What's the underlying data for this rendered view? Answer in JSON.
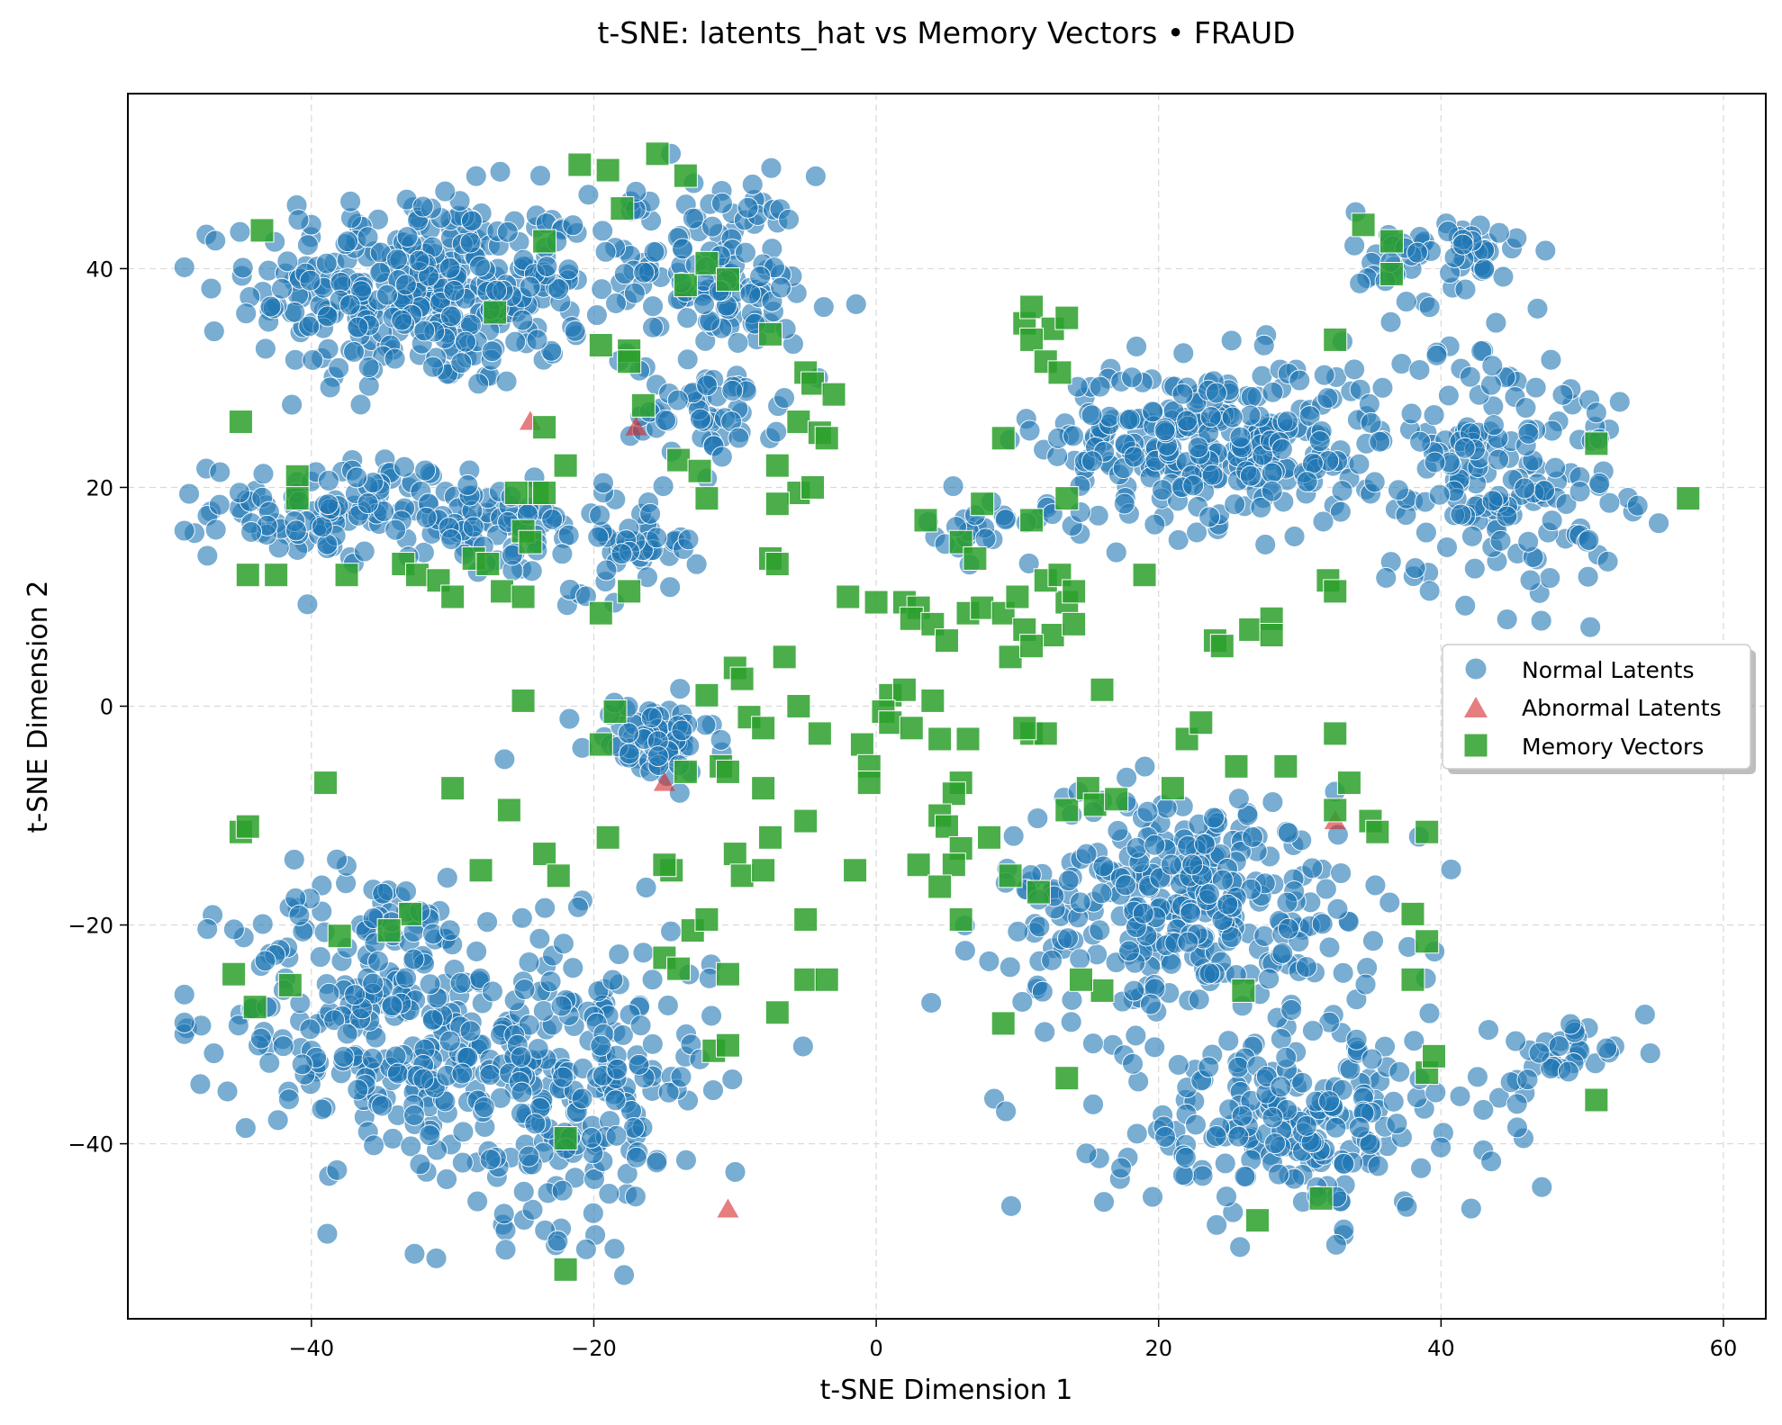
{
  "chart_data": {
    "type": "scatter",
    "title": "t-SNE: latents_hat vs Memory Vectors • FRAUD",
    "xlabel": "t-SNE Dimension 1",
    "ylabel": "t-SNE Dimension 2",
    "xlim": [
      -53,
      63
    ],
    "ylim": [
      -56,
      56
    ],
    "x_ticks": [
      -40,
      -20,
      0,
      20,
      40,
      60
    ],
    "y_ticks": [
      -40,
      -20,
      0,
      20,
      40
    ],
    "x_tick_labels": [
      "−40",
      "−20",
      "0",
      "20",
      "40",
      "60"
    ],
    "y_tick_labels": [
      "−40",
      "−20",
      "0",
      "20",
      "40"
    ],
    "grid": true,
    "legend_position": "center-right",
    "legend": [
      "Normal Latents",
      "Abnormal Latents",
      "Memory Vectors"
    ],
    "normal_clusters": [
      {
        "cx": -32,
        "cy": 38,
        "sx": 8,
        "sy": 6,
        "n": 360
      },
      {
        "cx": -14,
        "cy": 41,
        "sx": 6,
        "sy": 5,
        "n": 90
      },
      {
        "cx": -9,
        "cy": 37,
        "sx": 4,
        "sy": 3,
        "n": 50
      },
      {
        "cx": -12,
        "cy": 27,
        "sx": 3.5,
        "sy": 3,
        "n": 55
      },
      {
        "cx": -38,
        "cy": 18,
        "sx": 6,
        "sy": 3,
        "n": 120
      },
      {
        "cx": -27,
        "cy": 16,
        "sx": 5,
        "sy": 3,
        "n": 60
      },
      {
        "cx": -17,
        "cy": 15,
        "sx": 3,
        "sy": 3,
        "n": 50
      },
      {
        "cx": -16,
        "cy": -3,
        "sx": 3,
        "sy": 2.5,
        "n": 70
      },
      {
        "cx": -35,
        "cy": -28,
        "sx": 7,
        "sy": 9,
        "n": 260
      },
      {
        "cx": -22,
        "cy": -34,
        "sx": 7,
        "sy": 9,
        "n": 260
      },
      {
        "cx": 24,
        "cy": 24,
        "sx": 8,
        "sy": 5,
        "n": 300
      },
      {
        "cx": 44,
        "cy": 22,
        "sx": 6,
        "sy": 8,
        "n": 180
      },
      {
        "cx": 40,
        "cy": 41,
        "sx": 4,
        "sy": 3,
        "n": 60
      },
      {
        "cx": 8,
        "cy": 16,
        "sx": 3,
        "sy": 2,
        "n": 25
      },
      {
        "cx": 22,
        "cy": -18,
        "sx": 9,
        "sy": 7,
        "n": 320
      },
      {
        "cx": 30,
        "cy": -38,
        "sx": 9,
        "sy": 6,
        "n": 220
      },
      {
        "cx": 48,
        "cy": -32,
        "sx": 3,
        "sy": 2,
        "n": 30
      }
    ],
    "abnormal_points": [
      [
        -24.5,
        26
      ],
      [
        -17,
        25.5
      ],
      [
        -15,
        -7
      ],
      [
        -10.5,
        -46
      ],
      [
        32.5,
        -10.5
      ]
    ],
    "memory_vectors": [
      [
        -43.5,
        43.5
      ],
      [
        -21,
        49.5
      ],
      [
        -19,
        49
      ],
      [
        -15.5,
        50.5
      ],
      [
        -13.5,
        48.5
      ],
      [
        -18,
        45.5
      ],
      [
        -23.5,
        42.5
      ],
      [
        -27,
        36
      ],
      [
        -13.5,
        38.5
      ],
      [
        -12,
        40.5
      ],
      [
        -10.5,
        39
      ],
      [
        -7.5,
        34
      ],
      [
        -19.5,
        33
      ],
      [
        -17.5,
        32.5
      ],
      [
        -17.5,
        31.5
      ],
      [
        -5,
        30.5
      ],
      [
        -4.5,
        29.5
      ],
      [
        -3,
        28.5
      ],
      [
        -5.5,
        26
      ],
      [
        -4,
        25
      ],
      [
        -3.5,
        24.5
      ],
      [
        -16.5,
        27.5
      ],
      [
        -23.5,
        25.5
      ],
      [
        -22,
        22
      ],
      [
        -14,
        22.5
      ],
      [
        -12.5,
        21.5
      ],
      [
        -12,
        19
      ],
      [
        -7,
        22
      ],
      [
        -5.5,
        19.5
      ],
      [
        -4.5,
        20
      ],
      [
        -7,
        18.5
      ],
      [
        -24,
        19.5
      ],
      [
        -23.5,
        19.5
      ],
      [
        -25.5,
        19.5
      ],
      [
        -45,
        26
      ],
      [
        -41,
        21
      ],
      [
        -41,
        19
      ],
      [
        -25,
        16
      ],
      [
        -24.5,
        15
      ],
      [
        -44.5,
        12
      ],
      [
        -42.5,
        12
      ],
      [
        -37.5,
        12
      ],
      [
        -33.5,
        13
      ],
      [
        -32.5,
        12
      ],
      [
        -31,
        11.5
      ],
      [
        -30,
        10
      ],
      [
        -28.5,
        13.5
      ],
      [
        -27.5,
        13
      ],
      [
        -26.5,
        10.5
      ],
      [
        -25,
        10
      ],
      [
        -19.5,
        8.5
      ],
      [
        -17.5,
        10.5
      ],
      [
        -7.5,
        13.5
      ],
      [
        -7,
        13
      ],
      [
        -25,
        0.5
      ],
      [
        -18.5,
        -0.5
      ],
      [
        -19.5,
        -3.5
      ],
      [
        -12,
        1
      ],
      [
        -10,
        3.5
      ],
      [
        -9.5,
        2.5
      ],
      [
        -6.5,
        4.5
      ],
      [
        -5.5,
        0
      ],
      [
        -9,
        -1
      ],
      [
        -8,
        -2
      ],
      [
        -4,
        -2.5
      ],
      [
        -13.5,
        -6
      ],
      [
        -11,
        -5.5
      ],
      [
        -10.5,
        -6
      ],
      [
        -8,
        -7.5
      ],
      [
        -5,
        -10.5
      ],
      [
        -7.5,
        -12
      ],
      [
        -10,
        -13.5
      ],
      [
        -9.5,
        -15.5
      ],
      [
        -8,
        -15
      ],
      [
        -14.5,
        -15
      ],
      [
        -15,
        -14.5
      ],
      [
        -1.5,
        -15
      ],
      [
        -19,
        -12
      ],
      [
        -23.5,
        -13.5
      ],
      [
        -22.5,
        -15.5
      ],
      [
        -30,
        -7.5
      ],
      [
        -39,
        -7
      ],
      [
        -45,
        -11.5
      ],
      [
        -44.5,
        -11
      ],
      [
        -26,
        -9.5
      ],
      [
        -28,
        -15
      ],
      [
        -33,
        -19
      ],
      [
        -34.5,
        -20.5
      ],
      [
        -38,
        -21
      ],
      [
        -45.5,
        -24.5
      ],
      [
        -44,
        -27.5
      ],
      [
        -41.5,
        -25.5
      ],
      [
        -13,
        -20.5
      ],
      [
        -12,
        -19.5
      ],
      [
        -15,
        -23
      ],
      [
        -14,
        -24
      ],
      [
        -10.5,
        -24.5
      ],
      [
        -5,
        -19.5
      ],
      [
        -5,
        -25
      ],
      [
        -3.5,
        -25
      ],
      [
        -7,
        -28
      ],
      [
        -11.5,
        -31.5
      ],
      [
        -10.5,
        -31
      ],
      [
        -22,
        -39.5
      ],
      [
        -22,
        -51.5
      ],
      [
        1,
        1
      ],
      [
        2,
        1.5
      ],
      [
        4,
        0.5
      ],
      [
        0.5,
        -0.5
      ],
      [
        1,
        -1.5
      ],
      [
        2.5,
        -2
      ],
      [
        -1,
        -3.5
      ],
      [
        -0.5,
        -5.5
      ],
      [
        -0.5,
        -7
      ],
      [
        4.5,
        -3
      ],
      [
        6.5,
        -3
      ],
      [
        6,
        -7
      ],
      [
        5.5,
        -8
      ],
      [
        4.5,
        -10
      ],
      [
        5,
        -11
      ],
      [
        6,
        -13
      ],
      [
        5.5,
        -14.5
      ],
      [
        3,
        -14.5
      ],
      [
        4.5,
        -16.5
      ],
      [
        6,
        -19.5
      ],
      [
        8,
        -12
      ],
      [
        9.5,
        -15.5
      ],
      [
        9,
        -29
      ],
      [
        -2,
        10
      ],
      [
        0,
        9.5
      ],
      [
        2,
        9.5
      ],
      [
        3,
        9
      ],
      [
        2.5,
        8
      ],
      [
        4,
        7.5
      ],
      [
        5,
        6
      ],
      [
        6.5,
        8.5
      ],
      [
        7.5,
        9
      ],
      [
        9,
        8.5
      ],
      [
        10,
        10
      ],
      [
        10.5,
        7
      ],
      [
        9.5,
        4.5
      ],
      [
        12.5,
        6.5
      ],
      [
        13.5,
        9.5
      ],
      [
        14,
        7.5
      ],
      [
        11,
        5.5
      ],
      [
        3.5,
        17
      ],
      [
        6,
        15
      ],
      [
        7,
        13.5
      ],
      [
        7.5,
        18.5
      ],
      [
        11,
        17
      ],
      [
        12,
        11.5
      ],
      [
        13,
        12
      ],
      [
        14,
        10.5
      ],
      [
        9,
        24.5
      ],
      [
        13.5,
        19
      ],
      [
        10.5,
        35
      ],
      [
        11,
        36.5
      ],
      [
        12.5,
        34.5
      ],
      [
        13.5,
        35.5
      ],
      [
        11,
        33.5
      ],
      [
        12,
        31.5
      ],
      [
        13,
        30.5
      ],
      [
        11,
        -2.5
      ],
      [
        12,
        -2.5
      ],
      [
        10.5,
        -2
      ],
      [
        13.5,
        -9.5
      ],
      [
        15,
        -7.5
      ],
      [
        15.5,
        -9
      ],
      [
        16,
        1.5
      ],
      [
        17,
        -8.5
      ],
      [
        16,
        -26
      ],
      [
        14.5,
        -25
      ],
      [
        13.5,
        -34
      ],
      [
        11.5,
        -17
      ],
      [
        19,
        12
      ],
      [
        21,
        -7.5
      ],
      [
        22,
        -3
      ],
      [
        23,
        -1.5
      ],
      [
        25.5,
        -5.5
      ],
      [
        26.5,
        7
      ],
      [
        24,
        6
      ],
      [
        24.5,
        5.5
      ],
      [
        28,
        8
      ],
      [
        28,
        6.5
      ],
      [
        26,
        -26
      ],
      [
        29,
        -5.5
      ],
      [
        32.5,
        -9.5
      ],
      [
        33.5,
        -7
      ],
      [
        35,
        -10.5
      ],
      [
        35.5,
        -11.5
      ],
      [
        32.5,
        -2.5
      ],
      [
        32,
        11.5
      ],
      [
        32.5,
        10.5
      ],
      [
        32.5,
        33.5
      ],
      [
        34.5,
        44
      ],
      [
        36.5,
        42.5
      ],
      [
        36.5,
        39.5
      ],
      [
        38,
        -19
      ],
      [
        38,
        -25
      ],
      [
        39,
        -21.5
      ],
      [
        39,
        -11.5
      ],
      [
        39,
        -33.5
      ],
      [
        39.5,
        -32
      ],
      [
        27,
        -47
      ],
      [
        31.5,
        -45
      ],
      [
        51,
        -36
      ],
      [
        51,
        24
      ],
      [
        57.5,
        19
      ]
    ],
    "colors": {
      "normal": "#1f77b4",
      "abnormal": "#d62728",
      "memory": "#2ca02c",
      "grid": "#d9d9d9"
    }
  }
}
